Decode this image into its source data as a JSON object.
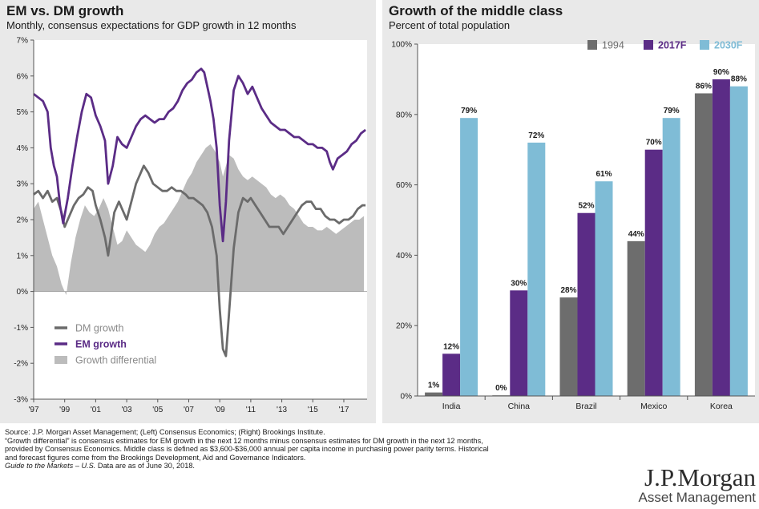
{
  "left_chart": {
    "title": "EM vs. DM growth",
    "subtitle": "Monthly, consensus expectations for GDP growth in 12 months",
    "chart_data": {
      "type": "line",
      "title": "EM vs. DM growth",
      "subtitle": "Monthly, consensus expectations for GDP growth in 12 months",
      "x_ticks": [
        "'97",
        "'99",
        "'01",
        "'03",
        "'05",
        "'07",
        "'09",
        "'11",
        "'13",
        "'15",
        "'17"
      ],
      "y_ticks": [
        "7%",
        "6%",
        "5%",
        "4%",
        "3%",
        "2%",
        "1%",
        "0%",
        "-1%",
        "-2%",
        "-3%"
      ],
      "ylim": [
        -3,
        7
      ],
      "xlim": [
        1997.0,
        2018.5
      ],
      "grid": false,
      "legend_position": "lower-left",
      "series": [
        {
          "name": "DM growth",
          "kind": "line",
          "color": "#6b6b6b",
          "x": [
            1997.0,
            1997.3,
            1997.6,
            1997.9,
            1998.2,
            1998.5,
            1998.8,
            1999.0,
            1999.3,
            1999.6,
            1999.9,
            2000.2,
            2000.5,
            2000.8,
            2001.0,
            2001.3,
            2001.6,
            2001.8,
            2002.0,
            2002.2,
            2002.5,
            2002.8,
            2003.0,
            2003.3,
            2003.6,
            2003.9,
            2004.1,
            2004.4,
            2004.7,
            2005.0,
            2005.3,
            2005.6,
            2005.9,
            2006.2,
            2006.5,
            2006.8,
            2007.0,
            2007.3,
            2007.6,
            2007.9,
            2008.2,
            2008.5,
            2008.8,
            2009.0,
            2009.2,
            2009.4,
            2009.6,
            2009.9,
            2010.2,
            2010.5,
            2010.8,
            2011.0,
            2011.3,
            2011.6,
            2011.9,
            2012.2,
            2012.5,
            2012.8,
            2013.1,
            2013.4,
            2013.7,
            2014.0,
            2014.3,
            2014.6,
            2014.9,
            2015.2,
            2015.5,
            2015.8,
            2016.1,
            2016.4,
            2016.7,
            2017.0,
            2017.3,
            2017.6,
            2017.9,
            2018.2,
            2018.4
          ],
          "values": [
            2.7,
            2.8,
            2.6,
            2.8,
            2.5,
            2.6,
            2.2,
            1.8,
            2.1,
            2.4,
            2.6,
            2.7,
            2.9,
            2.8,
            2.4,
            2.0,
            1.5,
            1.0,
            1.6,
            2.2,
            2.5,
            2.2,
            2.0,
            2.5,
            3.0,
            3.3,
            3.5,
            3.3,
            3.0,
            2.9,
            2.8,
            2.8,
            2.9,
            2.8,
            2.8,
            2.7,
            2.6,
            2.6,
            2.5,
            2.4,
            2.2,
            1.8,
            1.0,
            -0.5,
            -1.6,
            -1.8,
            -0.6,
            1.2,
            2.2,
            2.6,
            2.5,
            2.6,
            2.4,
            2.2,
            2.0,
            1.8,
            1.8,
            1.8,
            1.6,
            1.8,
            2.0,
            2.2,
            2.4,
            2.5,
            2.5,
            2.3,
            2.3,
            2.1,
            2.0,
            2.0,
            1.9,
            2.0,
            2.0,
            2.1,
            2.3,
            2.4,
            2.4
          ]
        },
        {
          "name": "EM growth",
          "kind": "line",
          "color": "#5b2c86",
          "x": [
            1997.0,
            1997.3,
            1997.6,
            1997.9,
            1998.1,
            1998.3,
            1998.5,
            1998.7,
            1998.9,
            1999.2,
            1999.5,
            1999.8,
            2000.1,
            2000.4,
            2000.7,
            2001.0,
            2001.3,
            2001.6,
            2001.8,
            2002.1,
            2002.4,
            2002.7,
            2003.0,
            2003.3,
            2003.6,
            2003.9,
            2004.2,
            2004.5,
            2004.8,
            2005.1,
            2005.4,
            2005.7,
            2006.0,
            2006.3,
            2006.6,
            2006.9,
            2007.2,
            2007.5,
            2007.8,
            2008.0,
            2008.2,
            2008.4,
            2008.6,
            2008.8,
            2009.0,
            2009.2,
            2009.4,
            2009.6,
            2009.9,
            2010.2,
            2010.5,
            2010.8,
            2011.1,
            2011.4,
            2011.7,
            2012.0,
            2012.3,
            2012.6,
            2012.9,
            2013.2,
            2013.5,
            2013.8,
            2014.1,
            2014.4,
            2014.7,
            2015.0,
            2015.3,
            2015.6,
            2015.9,
            2016.1,
            2016.3,
            2016.6,
            2016.9,
            2017.2,
            2017.5,
            2017.8,
            2018.1,
            2018.4
          ],
          "values": [
            5.5,
            5.4,
            5.3,
            5.0,
            4.0,
            3.5,
            3.2,
            2.4,
            1.9,
            2.6,
            3.5,
            4.3,
            5.0,
            5.5,
            5.4,
            4.9,
            4.6,
            4.2,
            3.0,
            3.5,
            4.3,
            4.1,
            4.0,
            4.3,
            4.6,
            4.8,
            4.9,
            4.8,
            4.7,
            4.8,
            4.8,
            5.0,
            5.1,
            5.3,
            5.6,
            5.8,
            5.9,
            6.1,
            6.2,
            6.1,
            5.7,
            5.3,
            4.8,
            4.0,
            2.4,
            1.4,
            2.5,
            4.2,
            5.6,
            6.0,
            5.8,
            5.5,
            5.7,
            5.4,
            5.1,
            4.9,
            4.7,
            4.6,
            4.5,
            4.5,
            4.4,
            4.3,
            4.3,
            4.2,
            4.1,
            4.1,
            4.0,
            4.0,
            3.9,
            3.6,
            3.4,
            3.7,
            3.8,
            3.9,
            4.1,
            4.2,
            4.4,
            4.5
          ]
        },
        {
          "name": "Growth differential",
          "kind": "area",
          "color": "#bcbcbc",
          "x": [
            1997.0,
            1997.3,
            1997.6,
            1997.9,
            1998.2,
            1998.5,
            1998.8,
            1999.1,
            1999.4,
            1999.7,
            2000.0,
            2000.3,
            2000.6,
            2000.9,
            2001.2,
            2001.5,
            2001.8,
            2002.1,
            2002.4,
            2002.7,
            2003.0,
            2003.3,
            2003.6,
            2003.9,
            2004.2,
            2004.5,
            2004.8,
            2005.1,
            2005.4,
            2005.7,
            2006.0,
            2006.3,
            2006.6,
            2006.9,
            2007.2,
            2007.5,
            2007.8,
            2008.1,
            2008.4,
            2008.7,
            2009.0,
            2009.2,
            2009.4,
            2009.6,
            2009.9,
            2010.2,
            2010.5,
            2010.8,
            2011.1,
            2011.4,
            2011.7,
            2012.0,
            2012.3,
            2012.6,
            2012.9,
            2013.2,
            2013.5,
            2013.8,
            2014.1,
            2014.4,
            2014.7,
            2015.0,
            2015.3,
            2015.6,
            2015.9,
            2016.2,
            2016.5,
            2016.8,
            2017.1,
            2017.4,
            2017.7,
            2018.0,
            2018.3
          ],
          "values": [
            2.3,
            2.5,
            2.0,
            1.5,
            1.0,
            0.7,
            0.2,
            -0.1,
            0.8,
            1.5,
            2.0,
            2.4,
            2.2,
            2.1,
            2.3,
            2.6,
            2.3,
            1.8,
            1.3,
            1.4,
            1.7,
            1.5,
            1.3,
            1.2,
            1.1,
            1.3,
            1.6,
            1.8,
            1.9,
            2.1,
            2.3,
            2.5,
            2.8,
            3.1,
            3.3,
            3.6,
            3.8,
            4.0,
            4.1,
            3.9,
            3.6,
            3.2,
            3.5,
            3.8,
            3.7,
            3.4,
            3.2,
            3.1,
            3.2,
            3.1,
            3.0,
            2.9,
            2.7,
            2.6,
            2.7,
            2.6,
            2.4,
            2.3,
            2.1,
            1.9,
            1.8,
            1.8,
            1.7,
            1.7,
            1.8,
            1.7,
            1.6,
            1.7,
            1.8,
            1.9,
            2.0,
            2.0,
            2.1
          ]
        }
      ]
    }
  },
  "right_chart": {
    "title": "Growth of the middle class",
    "subtitle": "Percent of total population",
    "chart_data": {
      "type": "bar",
      "title": "Growth of the middle class",
      "subtitle": "Percent of total population",
      "categories": [
        "India",
        "China",
        "Brazil",
        "Mexico",
        "Korea"
      ],
      "y_ticks": [
        "100%",
        "80%",
        "60%",
        "40%",
        "20%",
        "0%"
      ],
      "ylim": [
        0,
        100
      ],
      "grid": false,
      "legend_position": "top-right",
      "series": [
        {
          "name": "1994",
          "color": "#6d6d6d",
          "values": [
            1,
            0,
            28,
            44,
            86
          ],
          "labels": [
            "1%",
            "0%",
            "28%",
            "44%",
            "86%"
          ]
        },
        {
          "name": "2017F",
          "color": "#5b2c86",
          "values": [
            12,
            30,
            52,
            70,
            90
          ],
          "labels": [
            "12%",
            "30%",
            "52%",
            "70%",
            "90%"
          ]
        },
        {
          "name": "2030F",
          "color": "#7fbcd6",
          "values": [
            79,
            72,
            61,
            79,
            88
          ],
          "labels": [
            "79%",
            "72%",
            "61%",
            "79%",
            "88%"
          ]
        }
      ]
    }
  },
  "footnote": {
    "lines": [
      "Source: J.P. Morgan Asset Management; (Left) Consensus Economics; (Right) Brookings Institute.",
      "“Growth differential” is consensus estimates for EM growth in the next 12 months minus consensus estimates for DM growth in the next 12 months,",
      "provided by Consensus Economics. Middle class is defined as $3,600-$36,000 annual per capita income in purchasing power parity terms. Historical",
      "and forecast figures come from the Brookings Development, Aid and Governance Indicators."
    ],
    "guide_prefix": "Guide to the Markets – U.S.",
    "guide_suffix": " Data are as of June 30, 2018."
  },
  "logo": {
    "main": "J.P.Morgan",
    "sub": "Asset Management"
  }
}
